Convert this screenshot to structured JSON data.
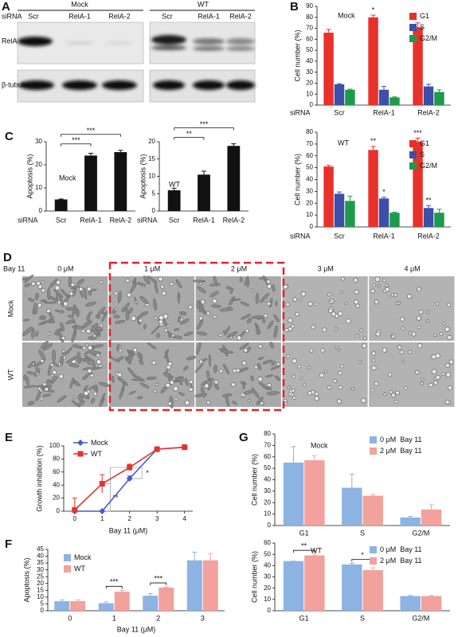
{
  "panel_labels": [
    "A",
    "B",
    "C",
    "D",
    "E",
    "F",
    "G"
  ],
  "blot": {
    "groups": [
      "Mock",
      "WT"
    ],
    "row_label": "siRNA",
    "lanes": [
      "Scr",
      "RelA-1",
      "RelA-2",
      "Scr",
      "RelA-1",
      "RelA-2"
    ],
    "proteins": [
      "RelA",
      "β-tubulin"
    ]
  },
  "micrographs": {
    "label": "Bay 11",
    "doses": [
      "0 μM",
      "1 μM",
      "2 μM",
      "3 μM",
      "4 μM"
    ],
    "rows": [
      "Mock",
      "WT"
    ]
  },
  "chart_data": [
    {
      "type": "bar",
      "annotation": "Mock",
      "y_label": "Cell number (%)",
      "category_label": "siRNA",
      "categories": [
        "Scr",
        "RelA-1",
        "RelA-2"
      ],
      "series": [
        {
          "name": "G1",
          "color": "#e8312a",
          "values": [
            66,
            80,
            71
          ],
          "errors": [
            3,
            2,
            4
          ],
          "stars": [
            null,
            "*",
            null
          ]
        },
        {
          "name": "S",
          "color": "#3d4fa8",
          "values": [
            19,
            14,
            17
          ],
          "errors": [
            0.5,
            3,
            2
          ]
        },
        {
          "name": "G2/M",
          "color": "#1f9a4a",
          "values": [
            14,
            7,
            12
          ],
          "errors": [
            0.5,
            0.5,
            2
          ]
        }
      ],
      "ylim": [
        0,
        90
      ],
      "yticks": [
        0,
        10,
        20,
        30,
        40,
        50,
        60,
        70,
        80,
        90
      ],
      "legend": "upper right"
    },
    {
      "type": "bar",
      "annotation": "WT",
      "y_label": "Cell number (%)",
      "category_label": "siRNA",
      "categories": [
        "Scr",
        "RelA-1",
        "RelA-2"
      ],
      "series": [
        {
          "name": "G1",
          "color": "#e8312a",
          "values": [
            51,
            65,
            72
          ],
          "errors": [
            1,
            3,
            3
          ],
          "stars": [
            null,
            "**",
            "***"
          ]
        },
        {
          "name": "S",
          "color": "#3d4fa8",
          "values": [
            28,
            24,
            16
          ],
          "errors": [
            1.5,
            1,
            2
          ],
          "stars": [
            null,
            "*",
            "**"
          ]
        },
        {
          "name": "G2/M",
          "color": "#1f9a4a",
          "values": [
            22,
            12,
            12
          ],
          "errors": [
            4,
            0.5,
            3
          ]
        }
      ],
      "ylim": [
        0,
        80
      ],
      "yticks": [
        0,
        10,
        20,
        30,
        40,
        50,
        60,
        70,
        80
      ],
      "legend": "upper right"
    },
    {
      "type": "bar",
      "annotation": "Mock",
      "y_label": "Apoptosis (%)",
      "category_label": "siRNA",
      "categories": [
        "Scr",
        "RelA-1",
        "RelA-2"
      ],
      "series": [
        {
          "color": "#111111",
          "values": [
            5,
            24,
            25.5
          ],
          "errors": [
            0.2,
            1,
            0.8
          ]
        }
      ],
      "ylim": [
        0,
        30
      ],
      "yticks": [
        0,
        10,
        20,
        30
      ],
      "brackets": [
        {
          "between": [
            "Scr",
            "RelA-1"
          ],
          "label": "***"
        },
        {
          "between": [
            "Scr",
            "RelA-2"
          ],
          "label": "***"
        }
      ]
    },
    {
      "type": "bar",
      "annotation": "WT",
      "y_label": "Apoptosis (%)",
      "category_label": "siRNA",
      "categories": [
        "Scr",
        "RelA-1",
        "RelA-2"
      ],
      "series": [
        {
          "color": "#111111",
          "values": [
            6,
            10.5,
            18.8
          ],
          "errors": [
            0.6,
            1,
            0.6
          ]
        }
      ],
      "ylim": [
        0,
        20
      ],
      "yticks": [
        0,
        5,
        10,
        15,
        20
      ],
      "brackets": [
        {
          "between": [
            "Scr",
            "RelA-1"
          ],
          "label": "**"
        },
        {
          "between": [
            "Scr",
            "RelA-2"
          ],
          "label": "***"
        }
      ]
    },
    {
      "type": "line",
      "x_label": "Bay 11 (μM)",
      "y_label": "Growth inhibition (%)",
      "x": [
        0,
        1,
        2,
        3,
        4
      ],
      "series": [
        {
          "name": "Mock",
          "color": "#3f5fc4",
          "marker": "diamond",
          "values": [
            0,
            0,
            50,
            95,
            98
          ],
          "errors": [
            0,
            0,
            4,
            2,
            2
          ]
        },
        {
          "name": "WT",
          "color": "#e3342f",
          "marker": "square",
          "values": [
            2,
            42,
            67,
            95,
            98
          ],
          "errors": [
            18,
            14,
            5,
            2,
            2
          ]
        }
      ],
      "xlim": [
        -0.4,
        4.3
      ],
      "ylim": [
        0,
        100
      ],
      "xticks": [
        0,
        1,
        2,
        3,
        4
      ],
      "yticks": [
        0,
        20,
        40,
        60,
        80,
        100
      ],
      "annotations": [
        "*",
        "**"
      ],
      "legend": "upper left"
    },
    {
      "type": "bar",
      "x_label": "Bay 11 (μM)",
      "y_label": "Apoptosis (%)",
      "categories": [
        "0",
        "1",
        "2",
        "3"
      ],
      "series": [
        {
          "name": "Mock",
          "color": "#8db3e2",
          "values": [
            7,
            5.5,
            11,
            37
          ],
          "errors": [
            1,
            1,
            1.5,
            6
          ]
        },
        {
          "name": "WT",
          "color": "#f2a19d",
          "values": [
            7,
            14,
            17,
            37
          ],
          "errors": [
            1,
            1,
            0.5,
            5
          ]
        }
      ],
      "ylim": [
        0,
        45
      ],
      "yticks": [
        0,
        5,
        10,
        15,
        20,
        25,
        30,
        35,
        40,
        45
      ],
      "category_stars": [
        null,
        "***",
        "***",
        null
      ],
      "legend": "upper left"
    },
    {
      "type": "bar",
      "annotation": "Mock",
      "y_label": "Cell number (%)",
      "categories": [
        "G1",
        "S",
        "G2/M"
      ],
      "series": [
        {
          "name": "0 μM  Bay 11",
          "color": "#8db3e2",
          "values": [
            55,
            33,
            7
          ],
          "errors": [
            14,
            12,
            1
          ]
        },
        {
          "name": "2 μM  Bay 11",
          "color": "#f2a19d",
          "values": [
            57,
            26,
            14
          ],
          "errors": [
            4,
            1,
            4
          ]
        }
      ],
      "ylim": [
        0,
        80
      ],
      "yticks": [
        0,
        10,
        20,
        30,
        40,
        50,
        60,
        70,
        80
      ],
      "legend": "upper right"
    },
    {
      "type": "bar",
      "annotation": "WT",
      "y_label": "Cell number (%)",
      "categories": [
        "G1",
        "S",
        "G2/M"
      ],
      "series": [
        {
          "name": "0 μM  Bay 11",
          "color": "#8db3e2",
          "values": [
            44,
            41,
            13
          ],
          "errors": [
            0,
            1,
            0.5
          ]
        },
        {
          "name": "2 μM  Bay 11",
          "color": "#f2a19d",
          "values": [
            49,
            36,
            13
          ],
          "errors": [
            1,
            2,
            0.5
          ]
        }
      ],
      "ylim": [
        0,
        60
      ],
      "yticks": [
        0,
        10,
        20,
        30,
        40,
        50,
        60
      ],
      "category_stars": [
        "**",
        "*",
        null
      ],
      "legend": "upper right"
    }
  ]
}
